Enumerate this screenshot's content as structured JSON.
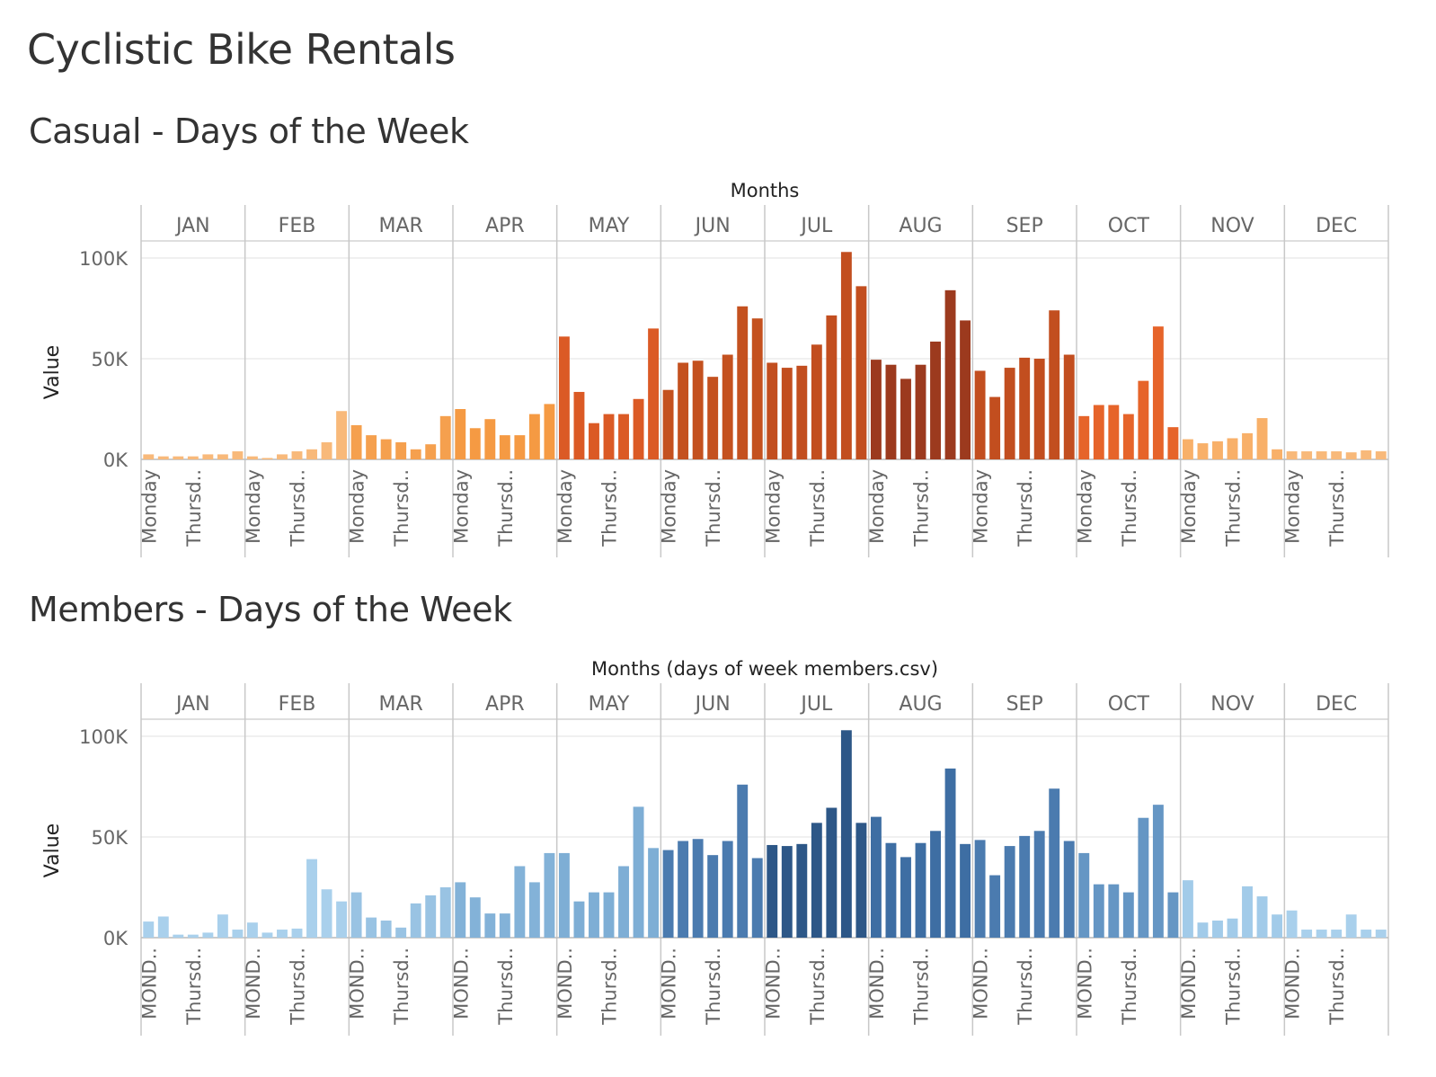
{
  "dashboard_title": "Cyclistic Bike Rentals",
  "chart_data": [
    {
      "id": "casual",
      "type": "bar",
      "title": "Casual - Days of the Week",
      "column_header": "Months",
      "ylabel": "Value",
      "ylim": [
        0,
        100000
      ],
      "y_ticks": [
        0,
        50000,
        100000
      ],
      "y_tick_labels": [
        "0K",
        "50K",
        "100K"
      ],
      "months": [
        "JAN",
        "FEB",
        "MAR",
        "APR",
        "MAY",
        "JUN",
        "JUL",
        "AUG",
        "SEP",
        "OCT",
        "NOV",
        "DEC"
      ],
      "x_tick_labels": [
        "Monday",
        "Thursd.."
      ],
      "colors": [
        "#f8b97a",
        "#f8b97a",
        "#f5a04e",
        "#f59a43",
        "#db5a25",
        "#c4511f",
        "#c24e1f",
        "#9c3a1e",
        "#c24e1f",
        "#e6642a",
        "#f8b069",
        "#f8b97a"
      ],
      "values": [
        [
          2500,
          1500,
          1500,
          1500,
          2500,
          2500,
          4000
        ],
        [
          1500,
          700,
          2500,
          4000,
          5000,
          8500,
          24000
        ],
        [
          17000,
          12000,
          10000,
          8500,
          5000,
          7500,
          21500
        ],
        [
          25000,
          15500,
          20000,
          12000,
          12000,
          22500,
          27500
        ],
        [
          61000,
          33500,
          18000,
          22500,
          22500,
          30000,
          65000
        ],
        [
          34500,
          48000,
          49000,
          41000,
          52000,
          76000,
          70000
        ],
        [
          48000,
          45500,
          46500,
          57000,
          71500,
          103000,
          86000
        ],
        [
          49500,
          47000,
          40000,
          47000,
          58500,
          84000,
          69000
        ],
        [
          44000,
          31000,
          45500,
          50500,
          50000,
          74000,
          52000
        ],
        [
          21500,
          27000,
          27000,
          22500,
          39000,
          66000,
          16000
        ],
        [
          10000,
          8000,
          9000,
          10500,
          13000,
          20500,
          5000
        ],
        [
          4000,
          4000,
          4000,
          4000,
          3500,
          4500,
          4000
        ]
      ]
    },
    {
      "id": "members",
      "type": "bar",
      "title": "Members - Days of the Week",
      "column_header": "Months (days of week members.csv)",
      "ylabel": "Value",
      "ylim": [
        0,
        100000
      ],
      "y_ticks": [
        0,
        50000,
        100000
      ],
      "y_tick_labels": [
        "0K",
        "50K",
        "100K"
      ],
      "months": [
        "JAN",
        "FEB",
        "MAR",
        "APR",
        "MAY",
        "JUN",
        "JUL",
        "AUG",
        "SEP",
        "OCT",
        "NOV",
        "DEC"
      ],
      "x_tick_labels": [
        "MOND..",
        "Thursd.."
      ],
      "colors": [
        "#a9d0ec",
        "#a9d0ec",
        "#99c3e3",
        "#83b2d8",
        "#7eaed5",
        "#4b7baf",
        "#2d5787",
        "#3e6ea3",
        "#4b7baf",
        "#6596c4",
        "#a2cbe9",
        "#a9d0ec"
      ],
      "values": [
        [
          8000,
          10500,
          1500,
          1500,
          2500,
          11500,
          4000
        ],
        [
          7500,
          2500,
          4000,
          4500,
          39000,
          24000,
          18000
        ],
        [
          22500,
          10000,
          8500,
          5000,
          17000,
          21000,
          25000
        ],
        [
          27500,
          20000,
          12000,
          12000,
          35500,
          27500,
          42000
        ],
        [
          42000,
          18000,
          22500,
          22500,
          35500,
          65000,
          44500
        ],
        [
          43500,
          48000,
          49000,
          41000,
          48000,
          76000,
          39500
        ],
        [
          46000,
          45500,
          46500,
          57000,
          64500,
          103000,
          57000
        ],
        [
          60000,
          47000,
          40000,
          47000,
          53000,
          84000,
          46500
        ],
        [
          48500,
          31000,
          45500,
          50500,
          53000,
          74000,
          48000
        ],
        [
          42000,
          26500,
          26500,
          22500,
          59500,
          66000,
          22500
        ],
        [
          28500,
          7500,
          8500,
          9500,
          25500,
          20500,
          11500
        ],
        [
          13500,
          4000,
          4000,
          4000,
          11500,
          4000,
          4000
        ]
      ]
    }
  ]
}
